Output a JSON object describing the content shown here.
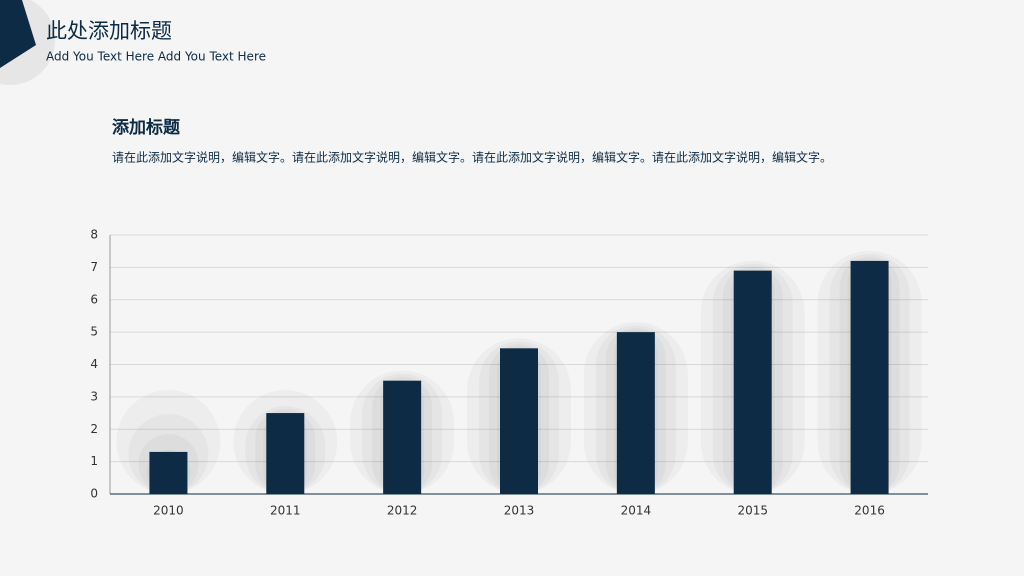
{
  "header": {
    "title": "此处添加标题",
    "subtitle": "Add You Text Here Add You Text Here"
  },
  "section": {
    "heading": "添加标题",
    "text": "请在此添加文字说明，编辑文字。请在此添加文字说明，编辑文字。请在此添加文字说明，编辑文字。请在此添加文字说明，编辑文字。"
  },
  "chart_data": {
    "type": "bar",
    "categories": [
      "2010",
      "2011",
      "2012",
      "2013",
      "2014",
      "2015",
      "2016"
    ],
    "values": [
      1.3,
      2.5,
      3.5,
      4.5,
      5.0,
      6.9,
      7.2
    ],
    "color": "#0d2b45",
    "ylim": [
      0,
      8
    ],
    "yticks": [
      0,
      1,
      2,
      3,
      4,
      5,
      6,
      7,
      8
    ],
    "grid": true
  }
}
